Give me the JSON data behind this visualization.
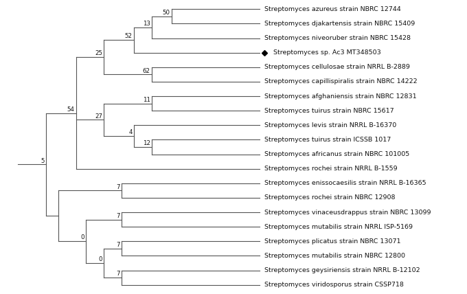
{
  "taxa": [
    "Streptomyces azureus strain NBRC 12744",
    "Streptomyces djakartensis strain NBRC 15409",
    "Streptomyces niveoruber strain NBRC 15428",
    "Streptomyces sp. Ac3 MT348503",
    "Streptomyces cellulosae strain NRRL B-2889",
    "Streptomyces capillispiralis strain NBRC 14222",
    "Streptomyces afghaniensis strain NBRC 12831",
    "Streptomyces tuirus strain NBRC 15617",
    "Streptomyces levis strain NRRL B-16370",
    "Streptomyces tuirus strain ICSSB 1017",
    "Streptomyces africanus strain NBRC 101005",
    "Streptomyces rochei strain NRRL B-1559",
    "Streptomyces enissocaesilis strain NRRL B-16365",
    "Streptomyces rochei strain NBRC 12908",
    "Streptomyces vinaceusdrappus strain NBRC 13099",
    "Streptomyces mutabilis strain NRRL ISP-5169",
    "Streptomyces plicatus strain NBRC 13071",
    "Streptomyces mutabilis strain NBRC 12800",
    "Streptomyces geysiriensis strain NRRL B-12102",
    "Streptomyces viridosporus strain CSSP718"
  ],
  "special_taxon": "Streptomyces sp. Ac3 MT348503",
  "background_color": "#ffffff",
  "line_color": "#555555",
  "text_color": "#111111",
  "font_size": 6.8,
  "bootstrap_font_size": 6.2,
  "fig_width": 6.8,
  "fig_height": 4.28,
  "dpi": 100
}
